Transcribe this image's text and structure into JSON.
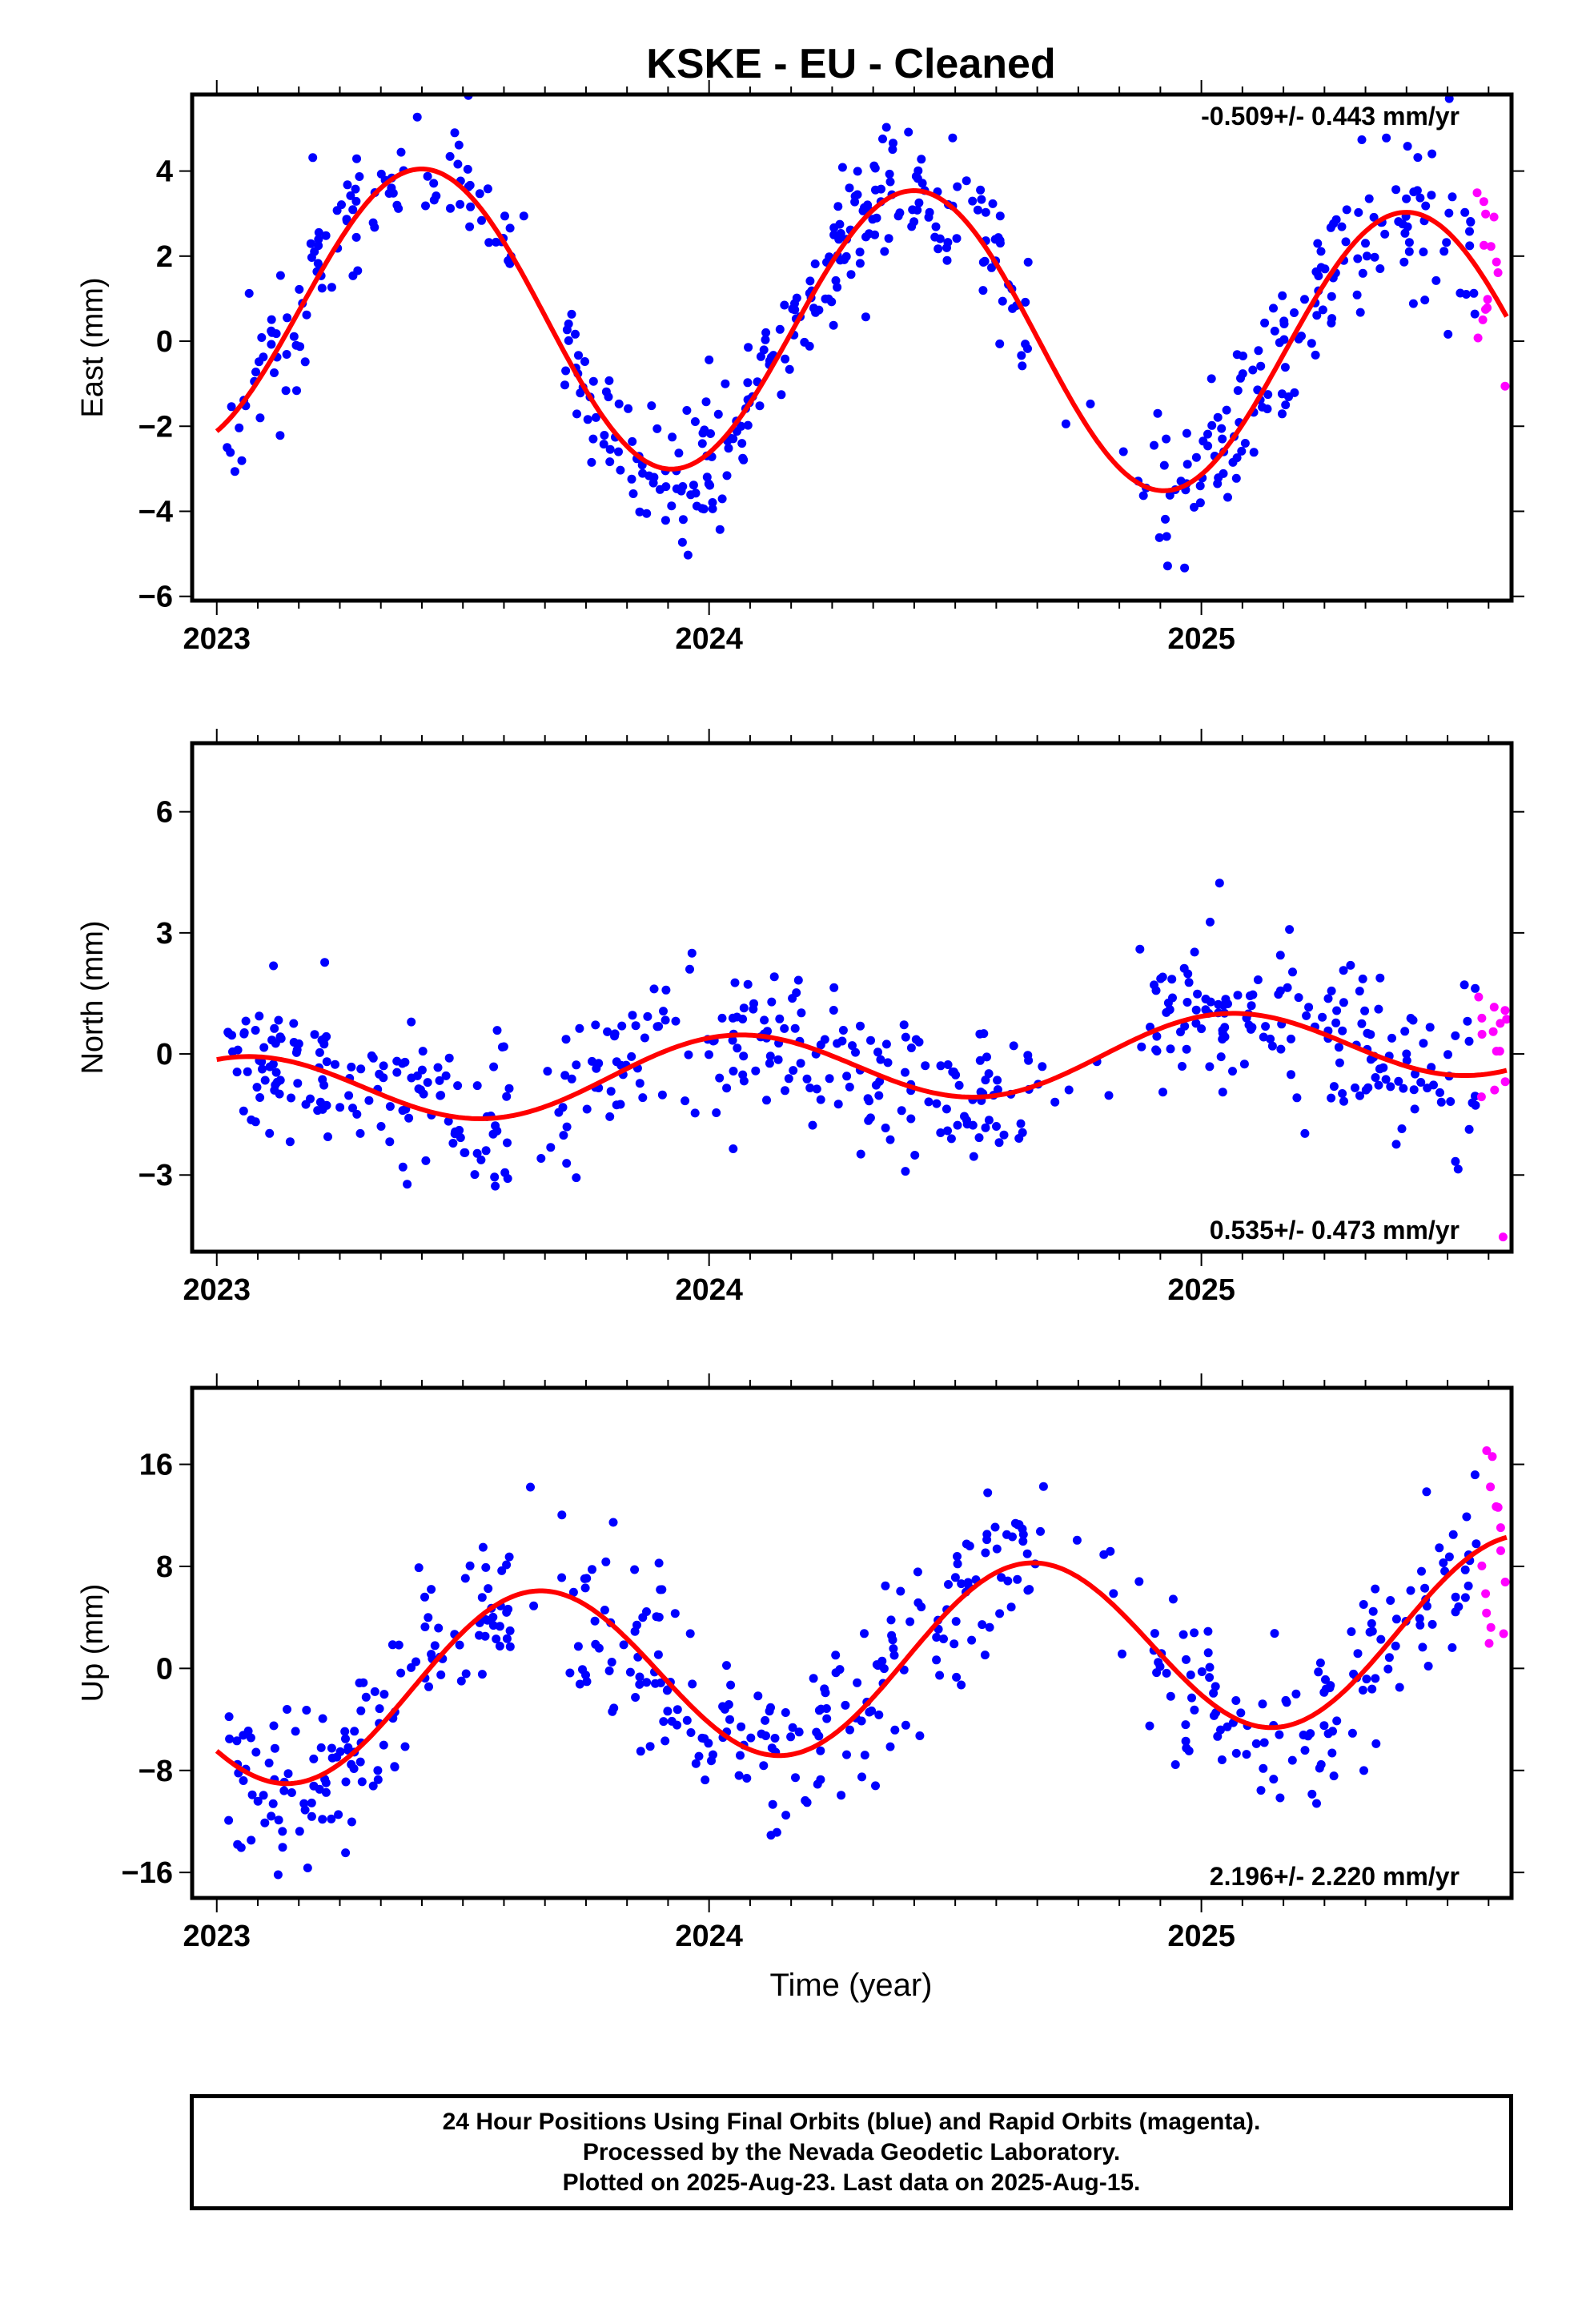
{
  "title": "KSKE  - EU - Cleaned",
  "xlabel": "Time (year)",
  "footer": {
    "line1": "24 Hour Positions Using Final Orbits (blue) and Rapid Orbits (magenta).",
    "line2": "Processed by the Nevada Geodetic Laboratory.",
    "line3": "Plotted on 2025-Aug-23. Last data on 2025-Aug-15."
  },
  "colors": {
    "final": "#0000ff",
    "rapid": "#ff00ff",
    "model": "#ff0000",
    "frame": "#000000"
  },
  "chart_data": [
    {
      "type": "scatter",
      "component": "East",
      "ylabel": "East (mm)",
      "rate_label": "-0.509+/- 0.443 mm/yr",
      "xlim": [
        2022.95,
        2025.63
      ],
      "ylim": [
        -6.1,
        5.8
      ],
      "yticks": [
        -6,
        -4,
        -2,
        0,
        2,
        4
      ],
      "xticks": [
        2023,
        2024,
        2025
      ],
      "model": {
        "mean": 0.2,
        "amp": 3.4,
        "peak": 2023.42,
        "trend": -0.509,
        "t0": 2024.3
      },
      "scatter_sd": 0.85,
      "gaps": [
        [
          2023.6,
          2023.7
        ],
        [
          2024.65,
          2024.87
        ]
      ],
      "final_range": [
        2023.02,
        2025.56
      ],
      "rapid_range": [
        2025.56,
        2025.62
      ],
      "n_final": 520,
      "n_rapid": 14,
      "seed": 11
    },
    {
      "type": "scatter",
      "component": "North",
      "ylabel": "North (mm)",
      "rate_label": "0.535+/- 0.473 mm/yr",
      "xlim": [
        2022.95,
        2025.63
      ],
      "ylim": [
        -4.9,
        7.7
      ],
      "yticks": [
        -3,
        0,
        3,
        6
      ],
      "xticks": [
        2023,
        2024,
        2025
      ],
      "model": {
        "mean": -0.3,
        "amp": 0.9,
        "peak": 2024.05,
        "trend": 0.535,
        "t0": 2024.3
      },
      "scatter_sd": 0.95,
      "gaps": [
        [
          2023.6,
          2023.7
        ],
        [
          2024.65,
          2024.87
        ]
      ],
      "final_range": [
        2023.02,
        2025.56
      ],
      "rapid_range": [
        2025.56,
        2025.62
      ],
      "n_final": 500,
      "n_rapid": 14,
      "seed": 23
    },
    {
      "type": "scatter",
      "component": "Up",
      "ylabel": "Up (mm)",
      "rate_label": "2.196+/- 2.220 mm/yr",
      "xlim": [
        2022.95,
        2025.63
      ],
      "ylim": [
        -18,
        22
      ],
      "yticks": [
        -16,
        -8,
        0,
        8,
        16
      ],
      "xticks": [
        2023,
        2024,
        2025
      ],
      "model": {
        "mean": 0.5,
        "amp": 7.0,
        "peak": 2024.65,
        "trend": 2.196,
        "t0": 2024.3
      },
      "scatter_sd": 3.6,
      "gaps": [
        [
          2023.6,
          2023.7
        ],
        [
          2024.65,
          2024.87
        ]
      ],
      "final_range": [
        2023.02,
        2025.56
      ],
      "rapid_range": [
        2025.56,
        2025.62
      ],
      "n_final": 480,
      "n_rapid": 14,
      "seed": 37
    }
  ]
}
